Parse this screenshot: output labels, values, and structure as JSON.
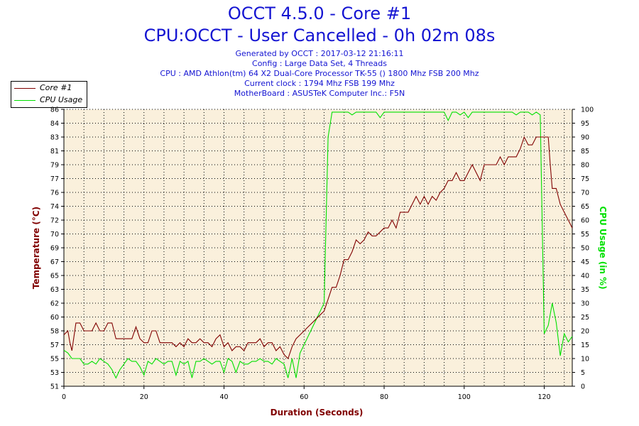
{
  "header": {
    "title_line1": "OCCT 4.5.0 - Core #1",
    "title_line2": "CPU:OCCT - User Cancelled - 0h 02m 08s",
    "info": [
      "Generated by OCCT : 2017-03-12 21:16:11",
      "Config : Large Data Set, 4 Threads",
      "CPU : AMD Athlon(tm) 64 X2 Dual-Core Processor TK-55 () 1800 Mhz FSB 200 Mhz",
      "Current clock : 1794 Mhz FSB 199 Mhz",
      "MotherBoard : ASUSTeK Computer Inc.: F5N"
    ]
  },
  "colors": {
    "temperature": "#800000",
    "cpu_usage": "#00e000",
    "plot_bg": "#faf0dc",
    "title": "#1414d2"
  },
  "chart_data": {
    "type": "line",
    "xlabel": "Duration (Seconds)",
    "ylabel_left": "Temperature (°C)",
    "ylabel_right": "CPU Usage (in %)",
    "xlim": [
      0,
      127
    ],
    "ylim_left": [
      51,
      86
    ],
    "ylim_right": [
      0,
      100
    ],
    "x_ticks": [
      0,
      20,
      40,
      60,
      80,
      100,
      120
    ],
    "y_ticks_left": [
      51,
      53,
      55,
      57,
      58,
      60,
      62,
      63,
      65,
      67,
      69,
      70,
      72,
      74,
      76,
      77,
      79,
      81,
      83,
      84,
      86
    ],
    "y_ticks_right": [
      0,
      5,
      10,
      15,
      20,
      25,
      30,
      35,
      40,
      45,
      50,
      55,
      60,
      65,
      70,
      75,
      80,
      85,
      90,
      95,
      100
    ],
    "grid": true,
    "legend": "top-left",
    "series": [
      {
        "name": "Core #1",
        "axis": "left",
        "points": [
          [
            0,
            57.5
          ],
          [
            1,
            58
          ],
          [
            1.5,
            56.5
          ],
          [
            2,
            55.5
          ],
          [
            3,
            59
          ],
          [
            4,
            59
          ],
          [
            5,
            58
          ],
          [
            6,
            58
          ],
          [
            7,
            58
          ],
          [
            8,
            59
          ],
          [
            9,
            58
          ],
          [
            10,
            58
          ],
          [
            11,
            59
          ],
          [
            12,
            59
          ],
          [
            13,
            57
          ],
          [
            14,
            57
          ],
          [
            15,
            57
          ],
          [
            16,
            57
          ],
          [
            17,
            57
          ],
          [
            18,
            58.5
          ],
          [
            19,
            57
          ],
          [
            20,
            56.5
          ],
          [
            21,
            56.5
          ],
          [
            22,
            58
          ],
          [
            23,
            58
          ],
          [
            24,
            56.5
          ],
          [
            25,
            56.5
          ],
          [
            26,
            56.5
          ],
          [
            27,
            56.5
          ],
          [
            28,
            56
          ],
          [
            29,
            56.5
          ],
          [
            30,
            56
          ],
          [
            31,
            57
          ],
          [
            32,
            56.5
          ],
          [
            33,
            56.5
          ],
          [
            34,
            57
          ],
          [
            35,
            56.5
          ],
          [
            36,
            56.5
          ],
          [
            37,
            56
          ],
          [
            38,
            57
          ],
          [
            39,
            57.5
          ],
          [
            40,
            56
          ],
          [
            41,
            56.5
          ],
          [
            42,
            55.5
          ],
          [
            43,
            56
          ],
          [
            44,
            56
          ],
          [
            45,
            55.5
          ],
          [
            46,
            56.5
          ],
          [
            47,
            56.5
          ],
          [
            48,
            56.5
          ],
          [
            49,
            57
          ],
          [
            50,
            56
          ],
          [
            51,
            56.5
          ],
          [
            52,
            56.5
          ],
          [
            53,
            55.5
          ],
          [
            54,
            56
          ],
          [
            55,
            55
          ],
          [
            56,
            54.5
          ],
          [
            57,
            56
          ],
          [
            58,
            57
          ],
          [
            59,
            57.5
          ],
          [
            60,
            58
          ],
          [
            61,
            58.5
          ],
          [
            62,
            59
          ],
          [
            63,
            59.5
          ],
          [
            64,
            60
          ],
          [
            65,
            60.5
          ],
          [
            66,
            62
          ],
          [
            67,
            63.5
          ],
          [
            68,
            63.5
          ],
          [
            69,
            65
          ],
          [
            70,
            67
          ],
          [
            71,
            67
          ],
          [
            72,
            68
          ],
          [
            73,
            69.5
          ],
          [
            74,
            69
          ],
          [
            75,
            69.5
          ],
          [
            76,
            70.5
          ],
          [
            77,
            70
          ],
          [
            78,
            70
          ],
          [
            79,
            70.5
          ],
          [
            80,
            71
          ],
          [
            81,
            71
          ],
          [
            82,
            72
          ],
          [
            83,
            71
          ],
          [
            84,
            73
          ],
          [
            85,
            73
          ],
          [
            86,
            73
          ],
          [
            87,
            74
          ],
          [
            88,
            75
          ],
          [
            89,
            74
          ],
          [
            90,
            75
          ],
          [
            91,
            74
          ],
          [
            92,
            75
          ],
          [
            93,
            74.5
          ],
          [
            94,
            75.5
          ],
          [
            95,
            76
          ],
          [
            96,
            77
          ],
          [
            97,
            77
          ],
          [
            98,
            78
          ],
          [
            99,
            77
          ],
          [
            100,
            77
          ],
          [
            101,
            78
          ],
          [
            102,
            79
          ],
          [
            103,
            78
          ],
          [
            104,
            77
          ],
          [
            105,
            79
          ],
          [
            106,
            79
          ],
          [
            107,
            79
          ],
          [
            108,
            79
          ],
          [
            109,
            80
          ],
          [
            110,
            79
          ],
          [
            111,
            80
          ],
          [
            112,
            80
          ],
          [
            113,
            80
          ],
          [
            114,
            81
          ],
          [
            115,
            82.5
          ],
          [
            116,
            81.5
          ],
          [
            117,
            81.5
          ],
          [
            118,
            82.5
          ],
          [
            119,
            82.5
          ],
          [
            120,
            82.5
          ],
          [
            121,
            82.5
          ],
          [
            121.5,
            79
          ],
          [
            122,
            76
          ],
          [
            123,
            76
          ],
          [
            124,
            74
          ],
          [
            125,
            73
          ],
          [
            126,
            72
          ],
          [
            127,
            71
          ]
        ]
      },
      {
        "name": "CPU Usage",
        "axis": "right",
        "points": [
          [
            0,
            13
          ],
          [
            1,
            12
          ],
          [
            2,
            10
          ],
          [
            3,
            10
          ],
          [
            4,
            10
          ],
          [
            5,
            8
          ],
          [
            6,
            8
          ],
          [
            7,
            9
          ],
          [
            8,
            8
          ],
          [
            9,
            10
          ],
          [
            10,
            9
          ],
          [
            11,
            8
          ],
          [
            12,
            6
          ],
          [
            13,
            3
          ],
          [
            14,
            6
          ],
          [
            15,
            8
          ],
          [
            16,
            10
          ],
          [
            17,
            9
          ],
          [
            18,
            9
          ],
          [
            19,
            7
          ],
          [
            20,
            4
          ],
          [
            21,
            9
          ],
          [
            22,
            8
          ],
          [
            23,
            10
          ],
          [
            24,
            9
          ],
          [
            25,
            8
          ],
          [
            26,
            9
          ],
          [
            27,
            9
          ],
          [
            28,
            4
          ],
          [
            29,
            9
          ],
          [
            30,
            8
          ],
          [
            31,
            9
          ],
          [
            32,
            3
          ],
          [
            33,
            9
          ],
          [
            34,
            9
          ],
          [
            35,
            10
          ],
          [
            36,
            9
          ],
          [
            37,
            8
          ],
          [
            38,
            9
          ],
          [
            39,
            9
          ],
          [
            40,
            5
          ],
          [
            41,
            10
          ],
          [
            42,
            9
          ],
          [
            43,
            5
          ],
          [
            44,
            9
          ],
          [
            45,
            8
          ],
          [
            46,
            8
          ],
          [
            47,
            9
          ],
          [
            48,
            9
          ],
          [
            49,
            10
          ],
          [
            50,
            9
          ],
          [
            51,
            9
          ],
          [
            52,
            8
          ],
          [
            53,
            10
          ],
          [
            54,
            9
          ],
          [
            55,
            8
          ],
          [
            56,
            3
          ],
          [
            57,
            10
          ],
          [
            58,
            3
          ],
          [
            59,
            12
          ],
          [
            60,
            15
          ],
          [
            61,
            18
          ],
          [
            62,
            21
          ],
          [
            63,
            24
          ],
          [
            64,
            27
          ],
          [
            65,
            30
          ],
          [
            66,
            90
          ],
          [
            67,
            99
          ],
          [
            68,
            99
          ],
          [
            69,
            99
          ],
          [
            70,
            99
          ],
          [
            71,
            99
          ],
          [
            72,
            98
          ],
          [
            73,
            99
          ],
          [
            74,
            99
          ],
          [
            75,
            99
          ],
          [
            76,
            99
          ],
          [
            77,
            99
          ],
          [
            78,
            99
          ],
          [
            79,
            97
          ],
          [
            80,
            99
          ],
          [
            81,
            99
          ],
          [
            82,
            99
          ],
          [
            83,
            99
          ],
          [
            84,
            99
          ],
          [
            85,
            99
          ],
          [
            86,
            99
          ],
          [
            87,
            99
          ],
          [
            88,
            99
          ],
          [
            89,
            99
          ],
          [
            90,
            99
          ],
          [
            91,
            99
          ],
          [
            92,
            99
          ],
          [
            93,
            99
          ],
          [
            94,
            99
          ],
          [
            95,
            99
          ],
          [
            96,
            96
          ],
          [
            97,
            99
          ],
          [
            98,
            99
          ],
          [
            99,
            98
          ],
          [
            100,
            99
          ],
          [
            101,
            97
          ],
          [
            102,
            99
          ],
          [
            103,
            99
          ],
          [
            104,
            99
          ],
          [
            105,
            99
          ],
          [
            106,
            99
          ],
          [
            107,
            99
          ],
          [
            108,
            99
          ],
          [
            109,
            99
          ],
          [
            110,
            99
          ],
          [
            111,
            99
          ],
          [
            112,
            99
          ],
          [
            113,
            98
          ],
          [
            114,
            99
          ],
          [
            115,
            99
          ],
          [
            116,
            99
          ],
          [
            117,
            98
          ],
          [
            118,
            99
          ],
          [
            119,
            98
          ],
          [
            120,
            19
          ],
          [
            121,
            22
          ],
          [
            122,
            30
          ],
          [
            123,
            23
          ],
          [
            124,
            11
          ],
          [
            125,
            19
          ],
          [
            126,
            16
          ],
          [
            127,
            18
          ]
        ]
      }
    ]
  }
}
